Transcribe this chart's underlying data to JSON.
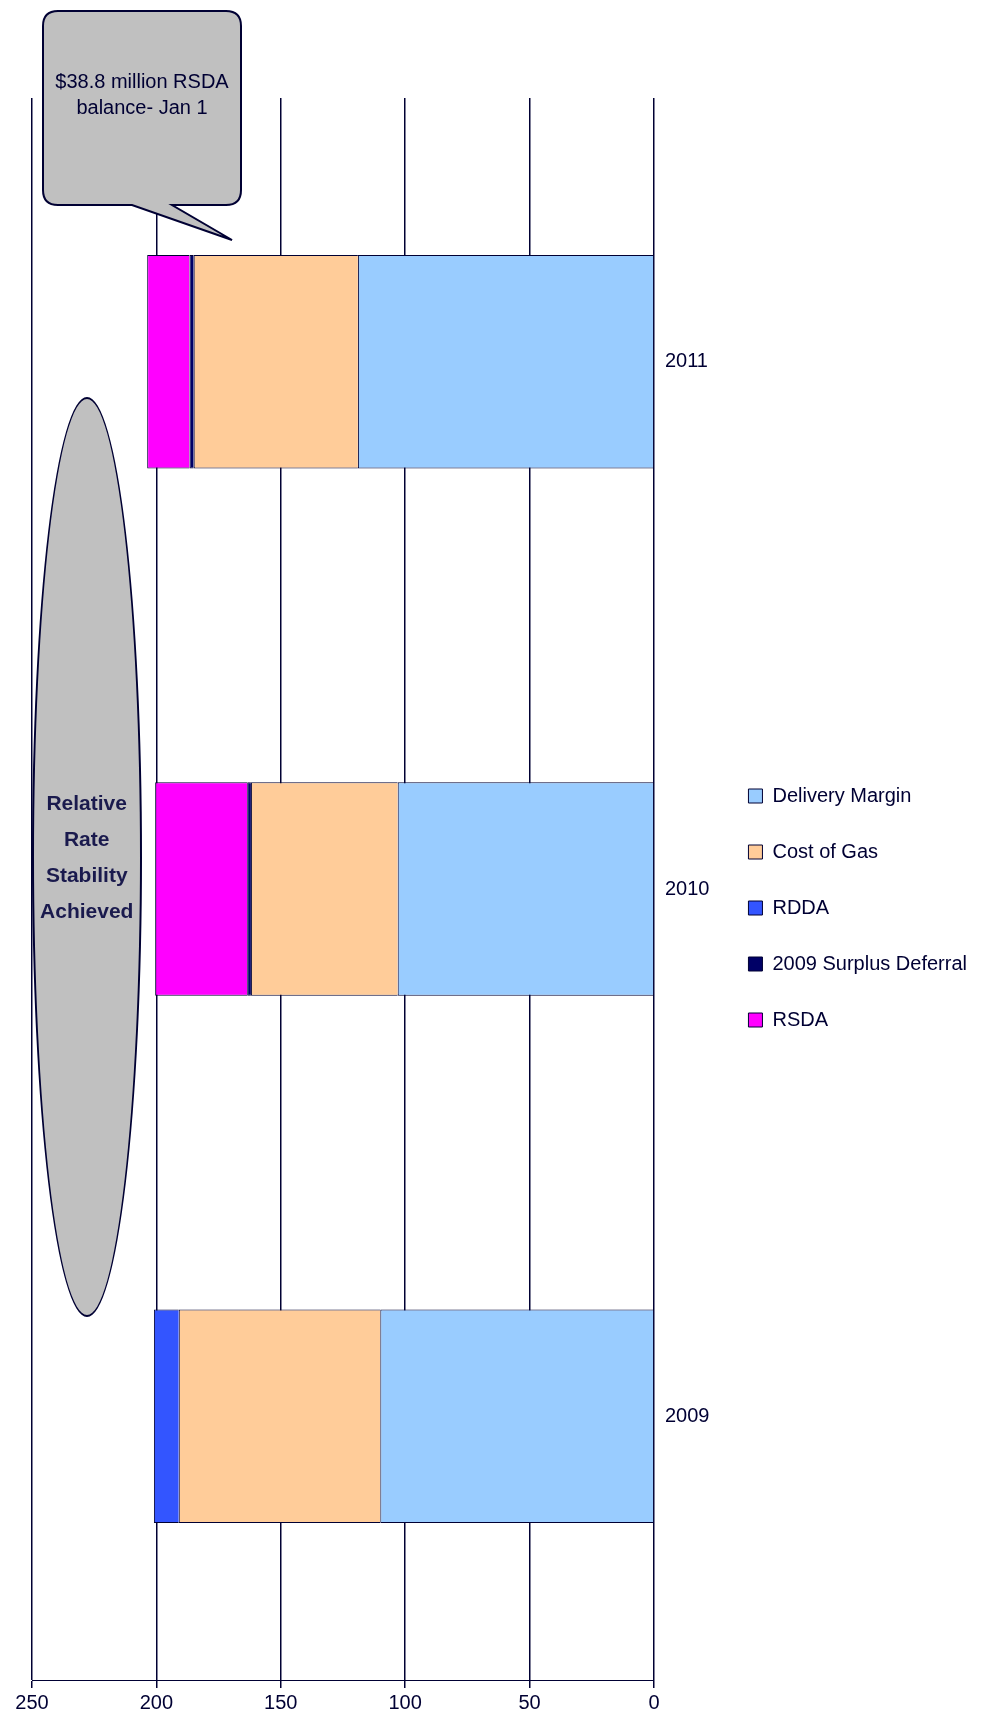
{
  "chart_data": {
    "type": "bar",
    "orientation": "horizontal",
    "stacked": true,
    "categories": [
      "2011",
      "2010",
      "2009"
    ],
    "series": [
      {
        "name": "Delivery Margin",
        "color": "#99ccff",
        "values": [
          119,
          103,
          110
        ]
      },
      {
        "name": "Cost of Gas",
        "color": "#ffcc99",
        "values": [
          66,
          59,
          81
        ]
      },
      {
        "name": "RDDA",
        "color": "#3355ff",
        "values": [
          null,
          null,
          10
        ]
      },
      {
        "name": "2009 Surplus Deferral",
        "color": "#000066",
        "values": [
          1.7,
          1.5,
          null
        ]
      },
      {
        "name": "RSDA",
        "color": "#ff00ff",
        "values": [
          17,
          37,
          null
        ]
      }
    ],
    "xlim": [
      250,
      0
    ],
    "xticks": [
      0,
      50,
      100,
      150,
      200,
      250
    ],
    "grid": "x",
    "legend": "right",
    "annotations": [
      "Relative Rate Stability Achieved",
      "$38.8 million RSDA balance- Jan 1"
    ]
  }
}
